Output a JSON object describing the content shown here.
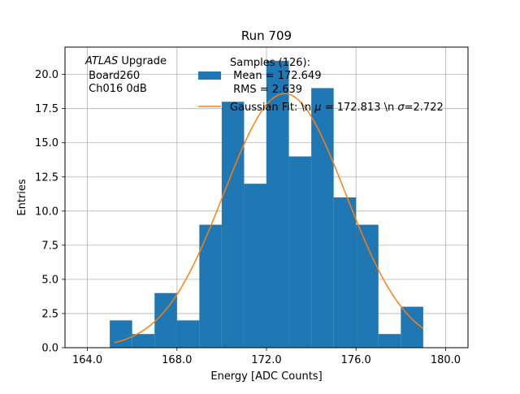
{
  "chart_data": {
    "type": "histogram",
    "title": "Run 709",
    "xlabel": "Energy [ADC Counts]",
    "ylabel": "Entries",
    "xlim": [
      163.0,
      181.0
    ],
    "ylim": [
      0,
      22.0
    ],
    "grid": true,
    "x_ticks": [
      164.0,
      168.0,
      172.0,
      176.0,
      180.0
    ],
    "x_tick_labels": [
      "164.0",
      "168.0",
      "172.0",
      "176.0",
      "180.0"
    ],
    "y_ticks": [
      0.0,
      2.5,
      5.0,
      7.5,
      10.0,
      12.5,
      15.0,
      17.5,
      20.0
    ],
    "y_tick_labels": [
      "0.0",
      "2.5",
      "5.0",
      "7.5",
      "10.0",
      "12.5",
      "15.0",
      "17.5",
      "20.0"
    ],
    "bins": {
      "edges": [
        165,
        166,
        167,
        168,
        169,
        170,
        171,
        172,
        173,
        174,
        175,
        176,
        177,
        178,
        179
      ],
      "counts": [
        2,
        1,
        4,
        2,
        9,
        18,
        12,
        21,
        14,
        19,
        11,
        9,
        1,
        3
      ],
      "color": "#1f77b4"
    },
    "fit": {
      "type": "gaussian",
      "mu": 172.813,
      "sigma": 2.722,
      "amplitude": 18.6,
      "x_range": [
        165.2,
        179.0
      ],
      "color": "#ff7f0e"
    },
    "annotation": {
      "line1_italic": "ATLAS",
      "line1_rest": " Upgrade",
      "line2": " Board260",
      "line3": " Ch016 0dB"
    },
    "legend": {
      "location": "upper-right",
      "histogram_lines": [
        "Samples (126):",
        " Mean = 172.649",
        " RMS = 2.639"
      ],
      "fit_label_prefix": "Gaussian Fit: \\n ",
      "fit_label_mu": "μ",
      "fit_label_mid": " = 172.813 \\n ",
      "fit_label_sigma": "σ",
      "fit_label_end": "=2.722"
    }
  }
}
